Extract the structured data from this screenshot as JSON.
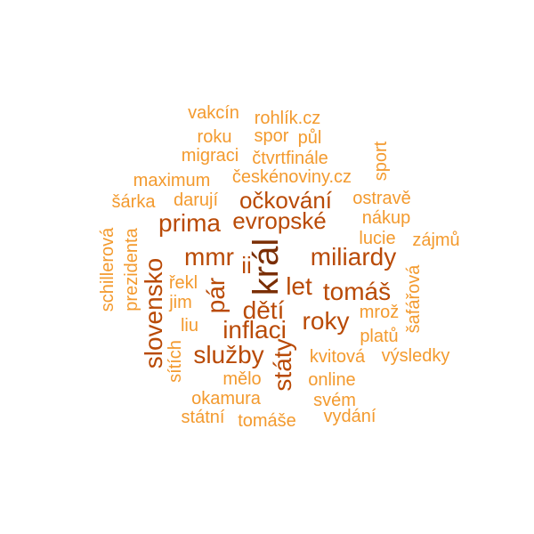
{
  "words": [
    {
      "id": "kral",
      "text": "král",
      "level": 4
    },
    {
      "id": "slovensko",
      "text": "slovensko",
      "level": 3
    },
    {
      "id": "miliardy",
      "text": "miliardy",
      "level": 3
    },
    {
      "id": "ockovani",
      "text": "očkování",
      "level": 3
    },
    {
      "id": "evropske",
      "text": "evropské",
      "level": 3
    },
    {
      "id": "prima",
      "text": "prima",
      "level": 3
    },
    {
      "id": "mmr",
      "text": "mmr",
      "level": 3
    },
    {
      "id": "deti",
      "text": "dětí",
      "level": 3
    },
    {
      "id": "inflaci",
      "text": "inflaci",
      "level": 3
    },
    {
      "id": "sluzby",
      "text": "služby",
      "level": 3
    },
    {
      "id": "roky",
      "text": "roky",
      "level": 3
    },
    {
      "id": "tomas",
      "text": "tomáš",
      "level": 3
    },
    {
      "id": "let",
      "text": "let",
      "level": 3
    },
    {
      "id": "par",
      "text": "pár",
      "level": 3
    },
    {
      "id": "staty",
      "text": "státy",
      "level": 3
    },
    {
      "id": "ii",
      "text": "ii",
      "level": 3
    },
    {
      "id": "vakcin",
      "text": "vakcín",
      "level": 1
    },
    {
      "id": "rohlik",
      "text": "rohlík.cz",
      "level": 1
    },
    {
      "id": "roku",
      "text": "roku",
      "level": 1
    },
    {
      "id": "spor",
      "text": "spor",
      "level": 1
    },
    {
      "id": "pul",
      "text": "půl",
      "level": 1
    },
    {
      "id": "migraci",
      "text": "migraci",
      "level": 1
    },
    {
      "id": "ctvrtfinale",
      "text": "čtvrtfinále",
      "level": 1
    },
    {
      "id": "sport",
      "text": "sport",
      "level": 1
    },
    {
      "id": "maximum",
      "text": "maximum",
      "level": 1
    },
    {
      "id": "ceskenoviny",
      "text": "českénoviny.cz",
      "level": 1
    },
    {
      "id": "sarka",
      "text": "šárka",
      "level": 1
    },
    {
      "id": "daruji",
      "text": "darují",
      "level": 1
    },
    {
      "id": "ostrave",
      "text": "ostravě",
      "level": 1
    },
    {
      "id": "nakup",
      "text": "nákup",
      "level": 1
    },
    {
      "id": "lucie",
      "text": "lucie",
      "level": 1
    },
    {
      "id": "zajmu",
      "text": "zájmů",
      "level": 1
    },
    {
      "id": "schillerova",
      "text": "schillerová",
      "level": 1
    },
    {
      "id": "prezidenta",
      "text": "prezidenta",
      "level": 1
    },
    {
      "id": "rekl",
      "text": "řekl",
      "level": 1
    },
    {
      "id": "jim",
      "text": "jim",
      "level": 1
    },
    {
      "id": "liu",
      "text": "liu",
      "level": 1
    },
    {
      "id": "sitich",
      "text": "sítích",
      "level": 1
    },
    {
      "id": "safarova",
      "text": "šafářová",
      "level": 1
    },
    {
      "id": "mroz",
      "text": "mrož",
      "level": 1
    },
    {
      "id": "platu",
      "text": "platů",
      "level": 1
    },
    {
      "id": "kvitova",
      "text": "kvitová",
      "level": 1
    },
    {
      "id": "vysledky",
      "text": "výsledky",
      "level": 1
    },
    {
      "id": "melo",
      "text": "mělo",
      "level": 1
    },
    {
      "id": "online",
      "text": "online",
      "level": 1
    },
    {
      "id": "okamura",
      "text": "okamura",
      "level": 1
    },
    {
      "id": "svem",
      "text": "svém",
      "level": 1
    },
    {
      "id": "statni",
      "text": "státní",
      "level": 1
    },
    {
      "id": "tomase",
      "text": "tomáše",
      "level": 1
    },
    {
      "id": "vydani",
      "text": "vydání",
      "level": 1
    }
  ]
}
